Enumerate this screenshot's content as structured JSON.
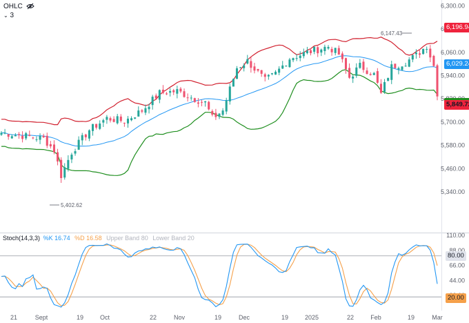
{
  "header": {
    "series_label": "OHLC",
    "eye_icon": "eye-off-icon",
    "collapsed_count": "3"
  },
  "price_axis": {
    "ticks": [
      "6,300.00",
      "6,180.00",
      "6,060.00",
      "5,940.00",
      "5,820.00",
      "5,700.00",
      "5,580.00",
      "5,460.00",
      "5,340.00"
    ],
    "tags": [
      {
        "label": "6,196.94",
        "color": "#ef233c"
      },
      {
        "label": "6,029.24",
        "color": "#2196f3"
      },
      {
        "label": "5,849.72",
        "color": "#ef233c"
      }
    ]
  },
  "annotations": {
    "high_label": "6,147.43",
    "low_label": "5,402.62"
  },
  "stoch": {
    "title": "Stoch",
    "params": "(14,3,3)",
    "k_label": "%K 16.74",
    "d_label": "%D 16.58",
    "upper_label": "Upper Band 80",
    "lower_label": "Lower Band 20",
    "ticks": [
      "110.00",
      "88.00",
      "66.00",
      "44.00",
      "22.00"
    ],
    "tags": [
      {
        "label": "80.00",
        "color": "#e0e3eb"
      },
      {
        "label": "20.00",
        "color": "#e0e3eb"
      },
      {
        "label": "16.74",
        "color": "#2196f3"
      }
    ]
  },
  "time_axis": {
    "labels": [
      "21",
      "Sept",
      "19",
      "Oct",
      "22",
      "Nov",
      "19",
      "Dec",
      "19",
      "2025",
      "22",
      "Feb",
      "19",
      "Mar"
    ]
  },
  "colors": {
    "up": "#26a69a",
    "down": "#ef5370",
    "upper_band": "#d1202e",
    "basis": "#2196f3",
    "lower_band": "#1e8e1e",
    "stoch_k": "#2196f3",
    "stoch_d": "#f5a04a"
  },
  "chart_data": [
    {
      "type": "candlestick",
      "title": "OHLC",
      "indicator": "Bollinger Bands",
      "ylim": [
        5130,
        6330
      ],
      "price_scale_ticks": [
        6300,
        6180,
        6060,
        5940,
        5820,
        5700,
        5580,
        5460,
        5340
      ],
      "last_close": 5849.72,
      "basis_last": 6029.24,
      "upper_band_last": 6196.94,
      "marked_high": 6147.43,
      "marked_low": 5402.62,
      "x_labels": [
        "21",
        "Sept",
        "19",
        "Oct",
        "22",
        "Nov",
        "19",
        "Dec",
        "19",
        "2025",
        "22",
        "Feb",
        "19",
        "Mar"
      ]
    },
    {
      "type": "line",
      "title": "Stoch(14,3,3)",
      "series": [
        {
          "name": "%K",
          "last": 16.74
        },
        {
          "name": "%D",
          "last": 16.58
        },
        {
          "name": "Upper Band",
          "value": 80
        },
        {
          "name": "Lower Band",
          "value": 20
        }
      ],
      "ylim": [
        0,
        110
      ],
      "ticks": [
        110,
        88,
        66,
        44,
        22
      ]
    }
  ]
}
